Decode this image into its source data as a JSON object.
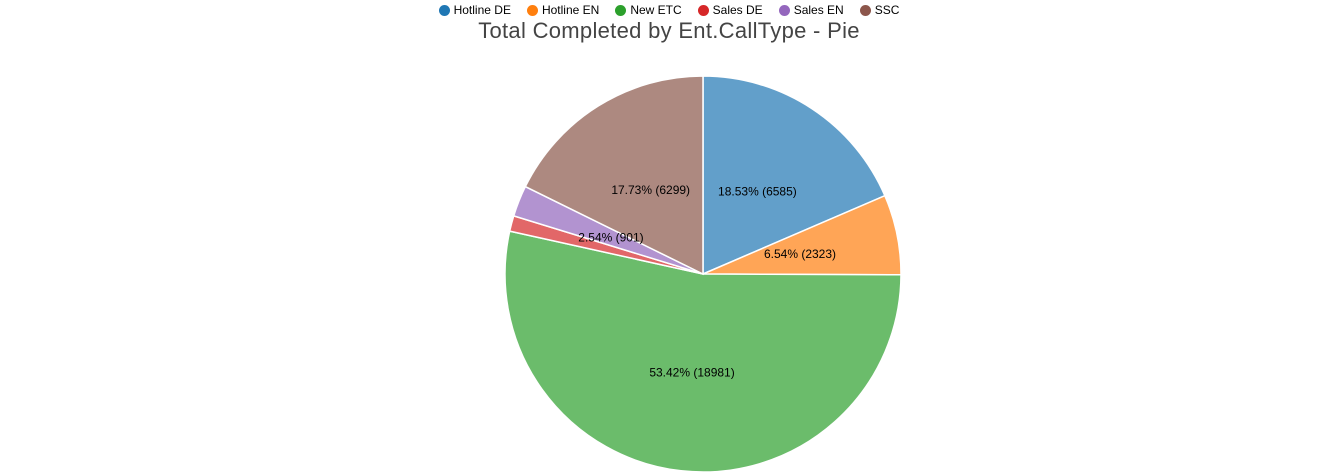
{
  "chart_data": {
    "type": "pie",
    "title": "Total Completed by Ent.CallType - Pie",
    "legend_position": "top",
    "slices": [
      {
        "name": "Hotline DE",
        "value": 6585,
        "percent": 18.53,
        "label": "18.53% (6585)",
        "color": "#1f77b4",
        "fill": "#629fca"
      },
      {
        "name": "Hotline EN",
        "value": 2323,
        "percent": 6.54,
        "label": "6.54% (2323)",
        "color": "#ff7f0e",
        "fill": "#ffa556"
      },
      {
        "name": "New ETC",
        "value": 18981,
        "percent": 53.42,
        "label": "53.42% (18981)",
        "color": "#2ca02c",
        "fill": "#6bbc6b"
      },
      {
        "name": "Sales DE",
        "value": 451,
        "percent": 1.27,
        "label": "",
        "color": "#d62728",
        "fill": "#e26768"
      },
      {
        "name": "Sales EN",
        "value": 901,
        "percent": 2.54,
        "label": "2.54% (901)",
        "color": "#9467bd",
        "fill": "#b293d0"
      },
      {
        "name": "SSC",
        "value": 6299,
        "percent": 17.73,
        "label": "17.73% (6299)",
        "color": "#8c564b",
        "fill": "#ad8980"
      }
    ]
  }
}
